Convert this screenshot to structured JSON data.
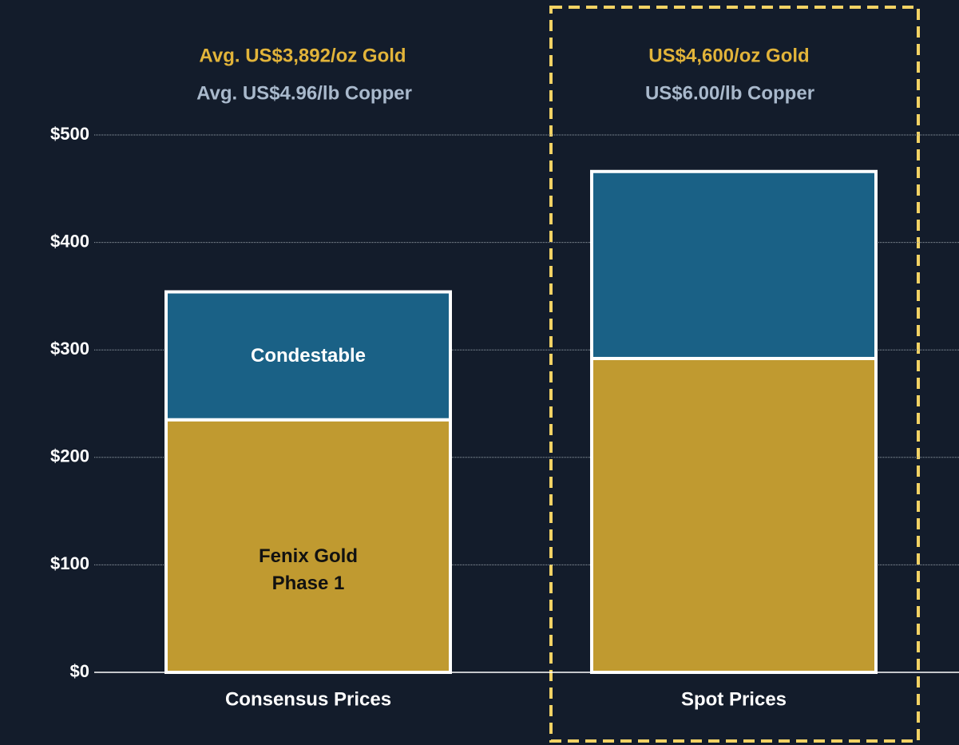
{
  "chart_data": {
    "type": "stacked_bar",
    "categories": [
      "Consensus Prices",
      "Spot Prices"
    ],
    "series": [
      {
        "name": "Fenix Gold Phase 1",
        "color": "#c09a30",
        "values": [
          235,
          292
        ]
      },
      {
        "name": "Condestable",
        "color": "#1a6186",
        "values": [
          119,
          174
        ]
      }
    ],
    "annotations": [
      {
        "gold": "Avg. US$3,892/oz Gold",
        "copper": "Avg. US$4.96/lb Copper"
      },
      {
        "gold": "US$4,600/oz Gold",
        "copper": "US$6.00/lb Copper"
      }
    ],
    "ylim": [
      0,
      500
    ],
    "yticks": [
      {
        "value": 0,
        "label": "$0"
      },
      {
        "value": 100,
        "label": "$100"
      },
      {
        "value": 200,
        "label": "$200"
      },
      {
        "value": 300,
        "label": "$300"
      },
      {
        "value": 400,
        "label": "$400"
      },
      {
        "value": 500,
        "label": "$500"
      }
    ],
    "grid": true
  }
}
